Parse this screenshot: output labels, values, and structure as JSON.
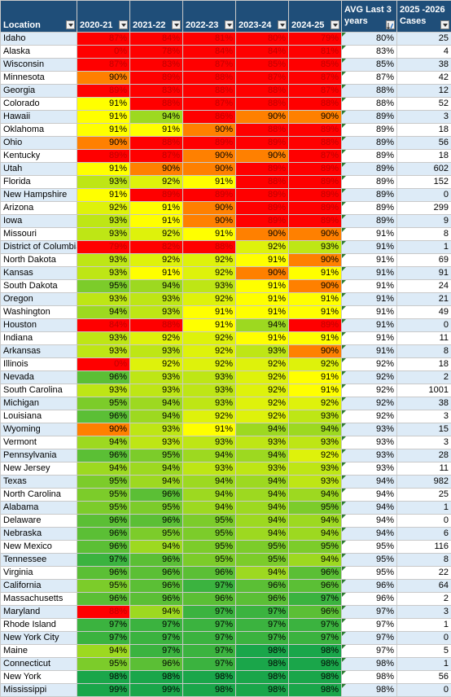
{
  "headers": {
    "location": "Location",
    "y2020": "2020-21",
    "y2021": "2021-22",
    "y2022": "2022-23",
    "y2023": "2023-24",
    "y2024": "2024-25",
    "avg": "AVG Last 3 years",
    "cases": "2025 -2026 Cases"
  },
  "rows": [
    {
      "loc": "Idaho",
      "v": [
        "87%",
        "84%",
        "81%",
        "80%",
        "79%"
      ],
      "avg": "80%",
      "cases": "25"
    },
    {
      "loc": "Alaska",
      "v": [
        "0%",
        "78%",
        "84%",
        "84%",
        "81%"
      ],
      "avg": "83%",
      "cases": "4"
    },
    {
      "loc": "Wisconsin",
      "v": [
        "87%",
        "83%",
        "87%",
        "85%",
        "85%"
      ],
      "avg": "85%",
      "cases": "38"
    },
    {
      "loc": "Minnesota",
      "v": [
        "90%",
        "89%",
        "88%",
        "87%",
        "87%"
      ],
      "avg": "87%",
      "cases": "42"
    },
    {
      "loc": "Georgia",
      "v": [
        "89%",
        "83%",
        "88%",
        "88%",
        "87%"
      ],
      "avg": "88%",
      "cases": "12"
    },
    {
      "loc": "Colorado",
      "v": [
        "91%",
        "88%",
        "87%",
        "88%",
        "88%"
      ],
      "avg": "88%",
      "cases": "52"
    },
    {
      "loc": "Hawaii",
      "v": [
        "91%",
        "94%",
        "86%",
        "90%",
        "90%"
      ],
      "avg": "89%",
      "cases": "3"
    },
    {
      "loc": "Oklahoma",
      "v": [
        "91%",
        "91%",
        "90%",
        "88%",
        "89%"
      ],
      "avg": "89%",
      "cases": "18"
    },
    {
      "loc": "Ohio",
      "v": [
        "90%",
        "88%",
        "89%",
        "89%",
        "88%"
      ],
      "avg": "89%",
      "cases": "56"
    },
    {
      "loc": "Kentucky",
      "v": [
        "89%",
        "87%",
        "90%",
        "90%",
        "87%"
      ],
      "avg": "89%",
      "cases": "18"
    },
    {
      "loc": "Utah",
      "v": [
        "91%",
        "90%",
        "90%",
        "89%",
        "89%"
      ],
      "avg": "89%",
      "cases": "602"
    },
    {
      "loc": "Florida",
      "v": [
        "93%",
        "92%",
        "91%",
        "88%",
        "89%"
      ],
      "avg": "89%",
      "cases": "152"
    },
    {
      "loc": "New Hampshire",
      "v": [
        "91%",
        "89%",
        "89%",
        "89%",
        "89%"
      ],
      "avg": "89%",
      "cases": "0"
    },
    {
      "loc": "Arizona",
      "v": [
        "92%",
        "91%",
        "90%",
        "89%",
        "89%"
      ],
      "avg": "89%",
      "cases": "299"
    },
    {
      "loc": "Iowa",
      "v": [
        "93%",
        "91%",
        "90%",
        "89%",
        "89%"
      ],
      "avg": "89%",
      "cases": "9"
    },
    {
      "loc": "Missouri",
      "v": [
        "93%",
        "92%",
        "91%",
        "90%",
        "90%"
      ],
      "avg": "91%",
      "cases": "8"
    },
    {
      "loc": "District of Columbia",
      "v": [
        "79%",
        "82%",
        "88%",
        "92%",
        "93%"
      ],
      "avg": "91%",
      "cases": "1"
    },
    {
      "loc": "North Dakota",
      "v": [
        "93%",
        "92%",
        "92%",
        "91%",
        "90%"
      ],
      "avg": "91%",
      "cases": "69"
    },
    {
      "loc": "Kansas",
      "v": [
        "93%",
        "91%",
        "92%",
        "90%",
        "91%"
      ],
      "avg": "91%",
      "cases": "91"
    },
    {
      "loc": "South Dakota",
      "v": [
        "95%",
        "94%",
        "93%",
        "91%",
        "90%"
      ],
      "avg": "91%",
      "cases": "24"
    },
    {
      "loc": "Oregon",
      "v": [
        "93%",
        "93%",
        "92%",
        "91%",
        "91%"
      ],
      "avg": "91%",
      "cases": "21"
    },
    {
      "loc": "Washington",
      "v": [
        "94%",
        "93%",
        "91%",
        "91%",
        "91%"
      ],
      "avg": "91%",
      "cases": "49"
    },
    {
      "loc": "Houston",
      "v": [
        "84%",
        "88%",
        "91%",
        "94%",
        "89%"
      ],
      "avg": "91%",
      "cases": "0"
    },
    {
      "loc": "Indiana",
      "v": [
        "93%",
        "92%",
        "92%",
        "91%",
        "91%"
      ],
      "avg": "91%",
      "cases": "11"
    },
    {
      "loc": "Arkansas",
      "v": [
        "93%",
        "93%",
        "92%",
        "93%",
        "90%"
      ],
      "avg": "91%",
      "cases": "8"
    },
    {
      "loc": "Illinois",
      "v": [
        "0%",
        "92%",
        "92%",
        "92%",
        "92%"
      ],
      "avg": "92%",
      "cases": "18"
    },
    {
      "loc": "Nevada",
      "v": [
        "96%",
        "93%",
        "93%",
        "92%",
        "91%"
      ],
      "avg": "92%",
      "cases": "2"
    },
    {
      "loc": "South Carolina",
      "v": [
        "93%",
        "93%",
        "93%",
        "92%",
        "91%"
      ],
      "avg": "92%",
      "cases": "1001"
    },
    {
      "loc": "Michigan",
      "v": [
        "95%",
        "94%",
        "93%",
        "92%",
        "92%"
      ],
      "avg": "92%",
      "cases": "38"
    },
    {
      "loc": "Louisiana",
      "v": [
        "96%",
        "94%",
        "92%",
        "92%",
        "93%"
      ],
      "avg": "92%",
      "cases": "3"
    },
    {
      "loc": "Wyoming",
      "v": [
        "90%",
        "93%",
        "91%",
        "94%",
        "94%"
      ],
      "avg": "93%",
      "cases": "15"
    },
    {
      "loc": "Vermont",
      "v": [
        "94%",
        "93%",
        "93%",
        "93%",
        "93%"
      ],
      "avg": "93%",
      "cases": "3"
    },
    {
      "loc": "Pennsylvania",
      "v": [
        "96%",
        "95%",
        "94%",
        "94%",
        "92%"
      ],
      "avg": "93%",
      "cases": "28"
    },
    {
      "loc": "New Jersey",
      "v": [
        "94%",
        "94%",
        "93%",
        "93%",
        "93%"
      ],
      "avg": "93%",
      "cases": "11"
    },
    {
      "loc": "Texas",
      "v": [
        "95%",
        "94%",
        "94%",
        "94%",
        "93%"
      ],
      "avg": "94%",
      "cases": "982"
    },
    {
      "loc": "North Carolina",
      "v": [
        "95%",
        "96%",
        "94%",
        "94%",
        "94%"
      ],
      "avg": "94%",
      "cases": "25"
    },
    {
      "loc": "Alabama",
      "v": [
        "95%",
        "95%",
        "94%",
        "94%",
        "95%"
      ],
      "avg": "94%",
      "cases": "1"
    },
    {
      "loc": "Delaware",
      "v": [
        "96%",
        "96%",
        "95%",
        "94%",
        "94%"
      ],
      "avg": "94%",
      "cases": "0"
    },
    {
      "loc": "Nebraska",
      "v": [
        "96%",
        "95%",
        "95%",
        "94%",
        "94%"
      ],
      "avg": "94%",
      "cases": "6"
    },
    {
      "loc": "New Mexico",
      "v": [
        "96%",
        "94%",
        "95%",
        "95%",
        "95%"
      ],
      "avg": "95%",
      "cases": "116"
    },
    {
      "loc": "Tennessee",
      "v": [
        "97%",
        "96%",
        "95%",
        "95%",
        "94%"
      ],
      "avg": "95%",
      "cases": "8"
    },
    {
      "loc": "Virginia",
      "v": [
        "96%",
        "96%",
        "96%",
        "94%",
        "96%"
      ],
      "avg": "95%",
      "cases": "22"
    },
    {
      "loc": "California",
      "v": [
        "95%",
        "96%",
        "97%",
        "96%",
        "96%"
      ],
      "avg": "96%",
      "cases": "64"
    },
    {
      "loc": "Massachusetts",
      "v": [
        "96%",
        "96%",
        "96%",
        "96%",
        "97%"
      ],
      "avg": "96%",
      "cases": "2"
    },
    {
      "loc": "Maryland",
      "v": [
        "88%",
        "94%",
        "97%",
        "97%",
        "96%"
      ],
      "avg": "97%",
      "cases": "3"
    },
    {
      "loc": "Rhode Island",
      "v": [
        "97%",
        "97%",
        "97%",
        "97%",
        "97%"
      ],
      "avg": "97%",
      "cases": "1"
    },
    {
      "loc": "New York City",
      "v": [
        "97%",
        "97%",
        "97%",
        "97%",
        "97%"
      ],
      "avg": "97%",
      "cases": "0"
    },
    {
      "loc": "Maine",
      "v": [
        "94%",
        "97%",
        "97%",
        "98%",
        "98%"
      ],
      "avg": "97%",
      "cases": "5"
    },
    {
      "loc": "Connecticut",
      "v": [
        "95%",
        "96%",
        "97%",
        "98%",
        "98%"
      ],
      "avg": "98%",
      "cases": "1"
    },
    {
      "loc": "New York",
      "v": [
        "98%",
        "98%",
        "98%",
        "98%",
        "98%"
      ],
      "avg": "98%",
      "cases": "56"
    },
    {
      "loc": "Mississippi",
      "v": [
        "99%",
        "99%",
        "98%",
        "98%",
        "98%"
      ],
      "avg": "98%",
      "cases": "0"
    }
  ]
}
